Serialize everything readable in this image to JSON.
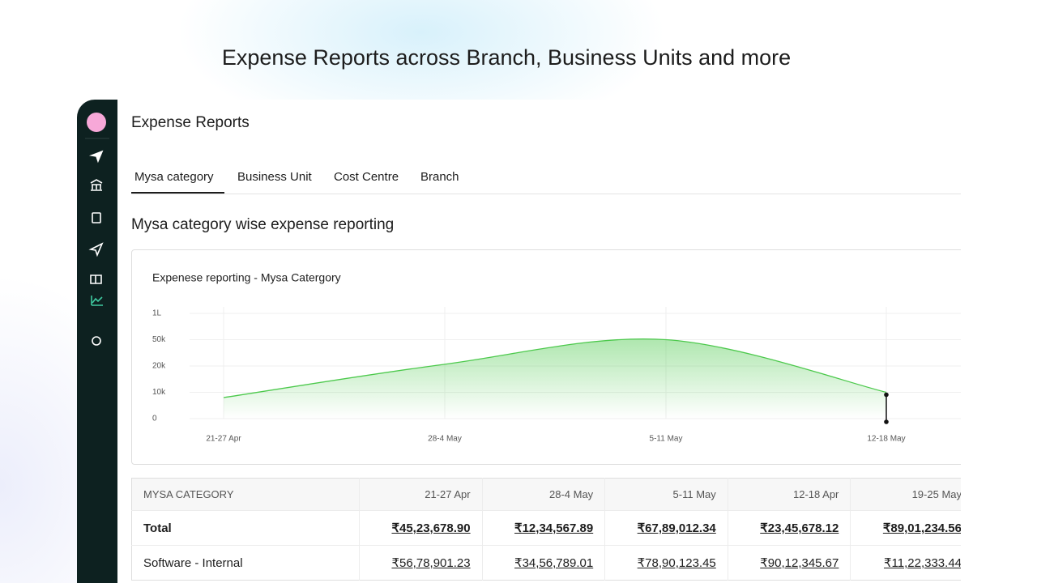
{
  "header": {
    "title": "Expense Reports across Branch, Business Units and more"
  },
  "app": {
    "title": "Expense Reports",
    "tabs": [
      "Mysa category",
      "Business Unit",
      "Cost Centre",
      "Branch"
    ],
    "section_title": "Mysa category wise expense reporting"
  },
  "chart_data": {
    "type": "area",
    "title": "Expenese reporting - Mysa Catergory",
    "categories": [
      "21-27 Apr",
      "28-4 May",
      "5-11 May",
      "12-18 May"
    ],
    "values": [
      8000,
      22000,
      50000,
      10000
    ],
    "color": "#4cc94c",
    "yticks": [
      0,
      {
        "value": 10000,
        "label": "10k"
      },
      {
        "value": 20000,
        "label": "20k"
      },
      {
        "value": 50000,
        "label": "50k"
      },
      {
        "value": 100000,
        "label": "1L"
      }
    ],
    "ylim": [
      0,
      100000
    ],
    "grid": true
  },
  "table": {
    "columns": [
      "MYSA CATEGORY",
      "21-27 Apr",
      "28-4 May",
      "5-11 May",
      "12-18 Apr",
      "19-25 May"
    ],
    "rows": [
      [
        "Total",
        "₹45,23,678.90",
        "₹12,34,567.89",
        "₹67,89,012.34",
        "₹23,45,678.12",
        "₹89,01,234.56"
      ],
      [
        "Software - Internal",
        "₹56,78,901.23",
        "₹34,56,789.01",
        "₹78,90,123.45",
        "₹90,12,345.67",
        "₹11,22,333.44"
      ]
    ]
  }
}
